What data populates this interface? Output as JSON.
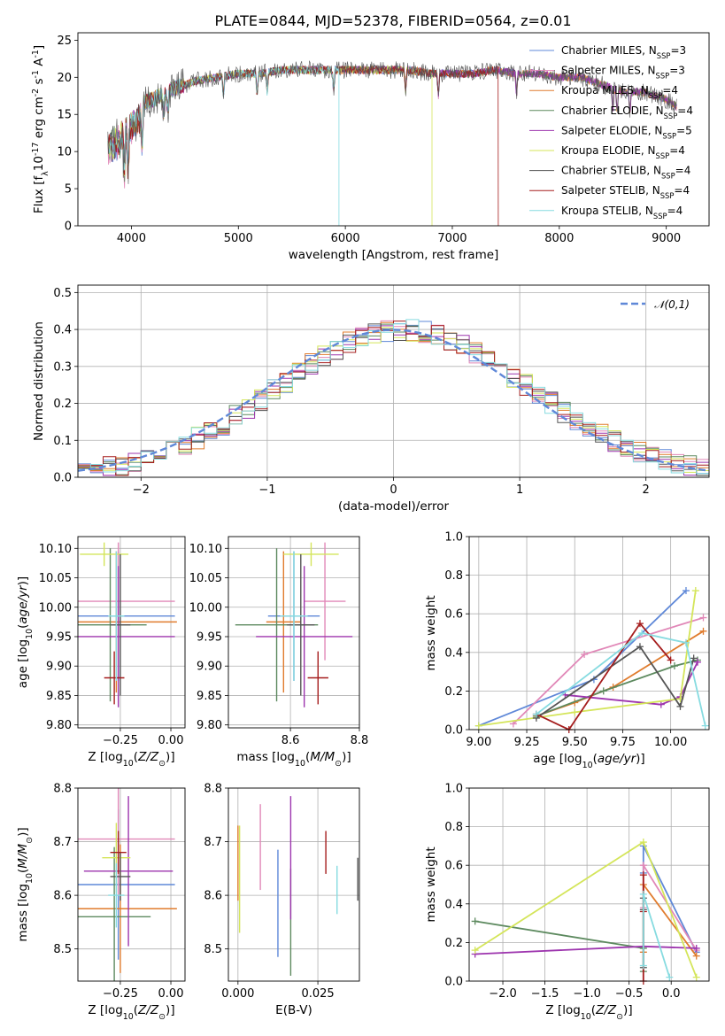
{
  "colors": {
    "chabrier_miles": "#5f88d8",
    "salpeter_miles": "#e188b8",
    "kroupa_miles": "#e07c2e",
    "chabrier_elodie": "#5d8a5f",
    "salpeter_elodie": "#9d35ae",
    "kroupa_elodie": "#d4e55a",
    "chabrier_stelib": "#555555",
    "salpeter_stelib": "#a51d1d",
    "kroupa_stelib": "#86dbe0"
  },
  "chart_data": [
    {
      "id": "spectrum",
      "type": "line",
      "title": "PLATE=0844, MJD=52378, FIBERID=0564, z=0.01",
      "xlabel": "wavelength [Angstrom, rest frame]",
      "ylabel": "Flux [f$_\\lambda$10$^{-17}$ erg cm$^{-2}$ s$^{-1}$ A$^{-1}$]",
      "xlim": [
        3500,
        9400
      ],
      "ylim": [
        0,
        26
      ],
      "xticks": [
        "4000",
        "5000",
        "6000",
        "7000",
        "8000",
        "9000"
      ],
      "yticks": [
        "0",
        "5",
        "10",
        "15",
        "20",
        "25"
      ],
      "grid": false,
      "legend_position": "top-right",
      "legend": [
        "Chabrier MILES, N$_{SSP}$=3",
        "Salpeter MILES, N$_{SSP}$=3",
        "Kroupa MILES, N$_{SSP}$=4",
        "Chabrier ELODIE, N$_{SSP}$=4",
        "Salpeter ELODIE, N$_{SSP}$=5",
        "Kroupa ELODIE, N$_{SSP}$=4",
        "Chabrier STELIB, N$_{SSP}$=4",
        "Salpeter STELIB, N$_{SSP}$=4",
        "Kroupa STELIB, N$_{SSP}$=4"
      ],
      "continuum": {
        "x": [
          3780,
          3900,
          4000,
          4100,
          4200,
          4400,
          4600,
          4800,
          5000,
          5200,
          5400,
          5600,
          5800,
          6000,
          6200,
          6400,
          6600,
          6800,
          7000,
          7200,
          7400,
          7600,
          7800,
          8000,
          8200,
          8400,
          8600,
          8800,
          9000,
          9100
        ],
        "y": [
          12,
          13,
          15,
          16.5,
          17,
          18.5,
          19.5,
          20,
          20.5,
          20.5,
          21,
          21,
          21,
          21,
          21,
          21,
          21,
          20.5,
          20.5,
          20.5,
          21,
          20.5,
          20.5,
          20,
          20,
          19,
          18,
          18,
          17,
          16
        ]
      },
      "model_end_wavelengths": [
        9100,
        9100,
        9100,
        9100,
        9100,
        6810,
        9100,
        7430,
        5940
      ]
    },
    {
      "id": "residuals",
      "type": "line",
      "xlabel": "(data-model)/error",
      "ylabel": "Normed distribution",
      "xlim": [
        -2.5,
        2.5
      ],
      "ylim": [
        0,
        0.52
      ],
      "xticks": [
        "−2",
        "−1",
        "0",
        "1",
        "2"
      ],
      "yticks": [
        "0.0",
        "0.1",
        "0.2",
        "0.3",
        "0.4",
        "0.5"
      ],
      "grid": true,
      "legend_position": "top-right",
      "reference_label": "$\\mathcal{N}(0,1)$",
      "bin_width": 0.1,
      "series_ids": [
        "chabrier_miles",
        "salpeter_miles",
        "kroupa_miles",
        "chabrier_elodie",
        "salpeter_elodie",
        "kroupa_elodie",
        "chabrier_stelib",
        "salpeter_stelib",
        "kroupa_stelib"
      ]
    },
    {
      "id": "age_vs_Z",
      "type": "scatter",
      "xlabel": "Z [log$_{10}$($Z/Z_\\odot$)]",
      "ylabel": "age  [log$_{10}$($age/yr$)]",
      "xlim": [
        -0.46,
        0.07
      ],
      "ylim": [
        9.795,
        10.12
      ],
      "xticks": [
        "−0.25",
        "0.00"
      ],
      "yticks": [
        "9.80",
        "9.85",
        "9.90",
        "9.95",
        "10.00",
        "10.05",
        "10.10"
      ],
      "grid": true,
      "points": [
        {
          "s": "chabrier_miles",
          "x": -0.26,
          "y": 9.985,
          "xerr": 0.28,
          "yerr": 0.11
        },
        {
          "s": "salpeter_miles",
          "x": -0.26,
          "y": 10.01,
          "xerr": 0.28,
          "yerr": 0.1
        },
        {
          "s": "kroupa_miles",
          "x": -0.27,
          "y": 9.975,
          "xerr": 0.3,
          "yerr": 0.12
        },
        {
          "s": "chabrier_elodie",
          "x": -0.3,
          "y": 9.97,
          "xerr": 0.18,
          "yerr": 0.13
        },
        {
          "s": "salpeter_elodie",
          "x": -0.26,
          "y": 9.95,
          "xerr": 0.28,
          "yerr": 0.12
        },
        {
          "s": "kroupa_elodie",
          "x": -0.33,
          "y": 10.09,
          "xerr": 0.12,
          "yerr": 0.02
        },
        {
          "s": "chabrier_stelib",
          "x": -0.25,
          "y": 9.97,
          "xerr": 0.05,
          "yerr": 0.12
        },
        {
          "s": "salpeter_stelib",
          "x": -0.28,
          "y": 9.88,
          "xerr": 0.05,
          "yerr": 0.045
        },
        {
          "s": "kroupa_stelib",
          "x": -0.27,
          "y": 9.985,
          "xerr": 0.04,
          "yerr": 0.11
        }
      ]
    },
    {
      "id": "age_vs_mass",
      "type": "scatter",
      "xlabel": "mass [log$_{10}$($M/M_\\odot$)]",
      "ylabel": "",
      "xlim": [
        8.42,
        8.8
      ],
      "ylim": [
        9.795,
        10.12
      ],
      "xticks": [
        "8.6",
        "8.8"
      ],
      "yticks": [
        "9.80",
        "9.85",
        "9.90",
        "9.95",
        "10.00",
        "10.05",
        "10.10"
      ],
      "grid": true,
      "points": [
        {
          "s": "chabrier_miles",
          "x": 8.61,
          "y": 9.985,
          "xerr": 0.075,
          "yerr": 0.11
        },
        {
          "s": "salpeter_miles",
          "x": 8.7,
          "y": 10.01,
          "xerr": 0.06,
          "yerr": 0.1
        },
        {
          "s": "kroupa_miles",
          "x": 8.58,
          "y": 9.975,
          "xerr": 0.05,
          "yerr": 0.12
        },
        {
          "s": "chabrier_elodie",
          "x": 8.56,
          "y": 9.97,
          "xerr": 0.12,
          "yerr": 0.13
        },
        {
          "s": "salpeter_elodie",
          "x": 8.64,
          "y": 9.95,
          "xerr": 0.14,
          "yerr": 0.12
        },
        {
          "s": "kroupa_elodie",
          "x": 8.66,
          "y": 10.09,
          "xerr": 0.08,
          "yerr": 0.02
        },
        {
          "s": "chabrier_stelib",
          "x": 8.63,
          "y": 9.97,
          "xerr": 0.04,
          "yerr": 0.12
        },
        {
          "s": "salpeter_stelib",
          "x": 8.68,
          "y": 9.88,
          "xerr": 0.03,
          "yerr": 0.045
        },
        {
          "s": "kroupa_stelib",
          "x": 8.61,
          "y": 9.985,
          "xerr": 0.04,
          "yerr": 0.11
        }
      ]
    },
    {
      "id": "massweight_vs_age",
      "type": "line",
      "xlabel": "age  [log$_{10}$($age/yr$)]",
      "ylabel": "mass weight",
      "xlim": [
        8.95,
        10.2
      ],
      "ylim": [
        0,
        1
      ],
      "xticks": [
        "9.00",
        "9.25",
        "9.50",
        "9.75",
        "10.00"
      ],
      "yticks": [
        "0.0",
        "0.2",
        "0.4",
        "0.6",
        "0.8",
        "1.0"
      ],
      "grid": true,
      "series": [
        {
          "s": "chabrier_miles",
          "x": [
            9.0,
            9.6,
            10.08
          ],
          "y": [
            0.02,
            0.26,
            0.72
          ]
        },
        {
          "s": "salpeter_miles",
          "x": [
            9.18,
            9.55,
            10.17
          ],
          "y": [
            0.03,
            0.39,
            0.58
          ]
        },
        {
          "s": "kroupa_miles",
          "x": [
            9.3,
            9.5,
            9.7,
            10.17
          ],
          "y": [
            0.07,
            0.14,
            0.22,
            0.51
          ]
        },
        {
          "s": "chabrier_elodie",
          "x": [
            9.3,
            9.65,
            10.02,
            10.14
          ],
          "y": [
            0.07,
            0.2,
            0.33,
            0.36
          ]
        },
        {
          "s": "salpeter_elodie",
          "x": [
            9.45,
            9.95,
            10.05,
            10.14
          ],
          "y": [
            0.18,
            0.13,
            0.17,
            0.35
          ]
        },
        {
          "s": "kroupa_elodie",
          "x": [
            9.0,
            9.5,
            10.05,
            10.13
          ],
          "y": [
            0.02,
            0.09,
            0.16,
            0.72
          ]
        },
        {
          "s": "chabrier_stelib",
          "x": [
            9.3,
            9.84,
            10.05,
            10.12
          ],
          "y": [
            0.06,
            0.43,
            0.12,
            0.37
          ]
        },
        {
          "s": "salpeter_stelib",
          "x": [
            9.3,
            9.47,
            9.84,
            10.0
          ],
          "y": [
            0.08,
            0.0,
            0.55,
            0.36
          ]
        },
        {
          "s": "kroupa_stelib",
          "x": [
            9.3,
            9.85,
            10.08,
            10.18
          ],
          "y": [
            0.08,
            0.5,
            0.45,
            0.02
          ]
        }
      ]
    },
    {
      "id": "mass_vs_Z",
      "type": "scatter",
      "xlabel": "Z [log$_{10}$($Z/Z_\\odot$)]",
      "ylabel": "mass [log$_{10}$($M/M_\\odot$)]",
      "xlim": [
        -0.46,
        0.07
      ],
      "ylim": [
        8.44,
        8.8
      ],
      "xticks": [
        "−0.25",
        "0.00"
      ],
      "yticks": [
        "8.5",
        "8.6",
        "8.7",
        "8.8"
      ],
      "grid": true,
      "points": [
        {
          "s": "chabrier_miles",
          "x": -0.26,
          "y": 8.62,
          "xerr": 0.28,
          "yerr": 0.14
        },
        {
          "s": "salpeter_miles",
          "x": -0.26,
          "y": 8.705,
          "xerr": 0.28,
          "yerr": 0.105
        },
        {
          "s": "kroupa_miles",
          "x": -0.25,
          "y": 8.575,
          "xerr": 0.28,
          "yerr": 0.12
        },
        {
          "s": "chabrier_elodie",
          "x": -0.28,
          "y": 8.56,
          "xerr": 0.18,
          "yerr": 0.13
        },
        {
          "s": "salpeter_elodie",
          "x": -0.21,
          "y": 8.645,
          "xerr": 0.22,
          "yerr": 0.14
        },
        {
          "s": "kroupa_elodie",
          "x": -0.27,
          "y": 8.67,
          "xerr": 0.07,
          "yerr": 0.065
        },
        {
          "s": "chabrier_stelib",
          "x": -0.25,
          "y": 8.635,
          "xerr": 0.05,
          "yerr": 0.045
        },
        {
          "s": "salpeter_stelib",
          "x": -0.26,
          "y": 8.68,
          "xerr": 0.04,
          "yerr": 0.04
        },
        {
          "s": "kroupa_stelib",
          "x": -0.27,
          "y": 8.6,
          "xerr": 0.04,
          "yerr": 0.06
        }
      ]
    },
    {
      "id": "mass_vs_ebv",
      "type": "scatter",
      "xlabel": "E(B-V)",
      "ylabel": "",
      "xlim": [
        -0.003,
        0.038
      ],
      "ylim": [
        8.44,
        8.8
      ],
      "xticks": [
        "0.000",
        "0.025"
      ],
      "yticks": [
        "8.5",
        "8.6",
        "8.7",
        "8.8"
      ],
      "grid": true,
      "points": [
        {
          "s": "chabrier_miles",
          "x": 0.0125,
          "y": 8.585,
          "xerr": 0,
          "yerr": 0.1
        },
        {
          "s": "salpeter_miles",
          "x": 0.007,
          "y": 8.69,
          "xerr": 0,
          "yerr": 0.08
        },
        {
          "s": "kroupa_miles",
          "x": 0.0,
          "y": 8.66,
          "xerr": 0,
          "yerr": 0.07
        },
        {
          "s": "chabrier_elodie",
          "x": 0.0165,
          "y": 8.55,
          "xerr": 0,
          "yerr": 0.1
        },
        {
          "s": "salpeter_elodie",
          "x": 0.0165,
          "y": 8.67,
          "xerr": 0,
          "yerr": 0.115
        },
        {
          "s": "kroupa_elodie",
          "x": 0.0005,
          "y": 8.63,
          "xerr": 0,
          "yerr": 0.1
        },
        {
          "s": "chabrier_stelib",
          "x": 0.0375,
          "y": 8.63,
          "xerr": 0,
          "yerr": 0.04
        },
        {
          "s": "salpeter_stelib",
          "x": 0.0275,
          "y": 8.68,
          "xerr": 0,
          "yerr": 0.04
        },
        {
          "s": "kroupa_stelib",
          "x": 0.031,
          "y": 8.61,
          "xerr": 0,
          "yerr": 0.045
        }
      ]
    },
    {
      "id": "massweight_vs_Z",
      "type": "line",
      "xlabel": "Z [log$_{10}$($Z/Z_\\odot$)]",
      "ylabel": "mass weight",
      "xlim": [
        -2.4,
        0.45
      ],
      "ylim": [
        0,
        1
      ],
      "xticks": [
        "−2.0",
        "−1.5",
        "−1.0",
        "−0.5",
        "0.0"
      ],
      "yticks": [
        "0.0",
        "0.2",
        "0.4",
        "0.6",
        "0.8",
        "1.0"
      ],
      "grid": true,
      "series": [
        {
          "s": "chabrier_miles",
          "x": [
            -0.33,
            -0.33,
            0.3
          ],
          "y": [
            0.56,
            0.7,
            0.15
          ]
        },
        {
          "s": "salpeter_miles",
          "x": [
            -0.33,
            -0.33,
            0.3
          ],
          "y": [
            0.38,
            0.6,
            0.16
          ]
        },
        {
          "s": "kroupa_miles",
          "x": [
            -0.33,
            -0.33,
            0.3
          ],
          "y": [
            0.15,
            0.5,
            0.13
          ]
        },
        {
          "s": "chabrier_elodie",
          "x": [
            -2.33,
            -0.33,
            -0.33
          ],
          "y": [
            0.31,
            0.17,
            0.05
          ]
        },
        {
          "s": "salpeter_elodie",
          "x": [
            -2.33,
            -0.33,
            0.3
          ],
          "y": [
            0.14,
            0.18,
            0.17
          ]
        },
        {
          "s": "kroupa_elodie",
          "x": [
            -2.33,
            -0.33,
            0.3
          ],
          "y": [
            0.16,
            0.72,
            0.02
          ]
        },
        {
          "s": "chabrier_stelib",
          "x": [
            -0.33,
            -0.33,
            -0.33
          ],
          "y": [
            0.07,
            0.37,
            0.43
          ]
        },
        {
          "s": "salpeter_stelib",
          "x": [
            -0.33,
            -0.33,
            -0.33
          ],
          "y": [
            0.0,
            0.36,
            0.55
          ]
        },
        {
          "s": "kroupa_stelib",
          "x": [
            -0.33,
            -0.33,
            -0.02
          ],
          "y": [
            0.08,
            0.45,
            0.02
          ]
        }
      ]
    }
  ]
}
